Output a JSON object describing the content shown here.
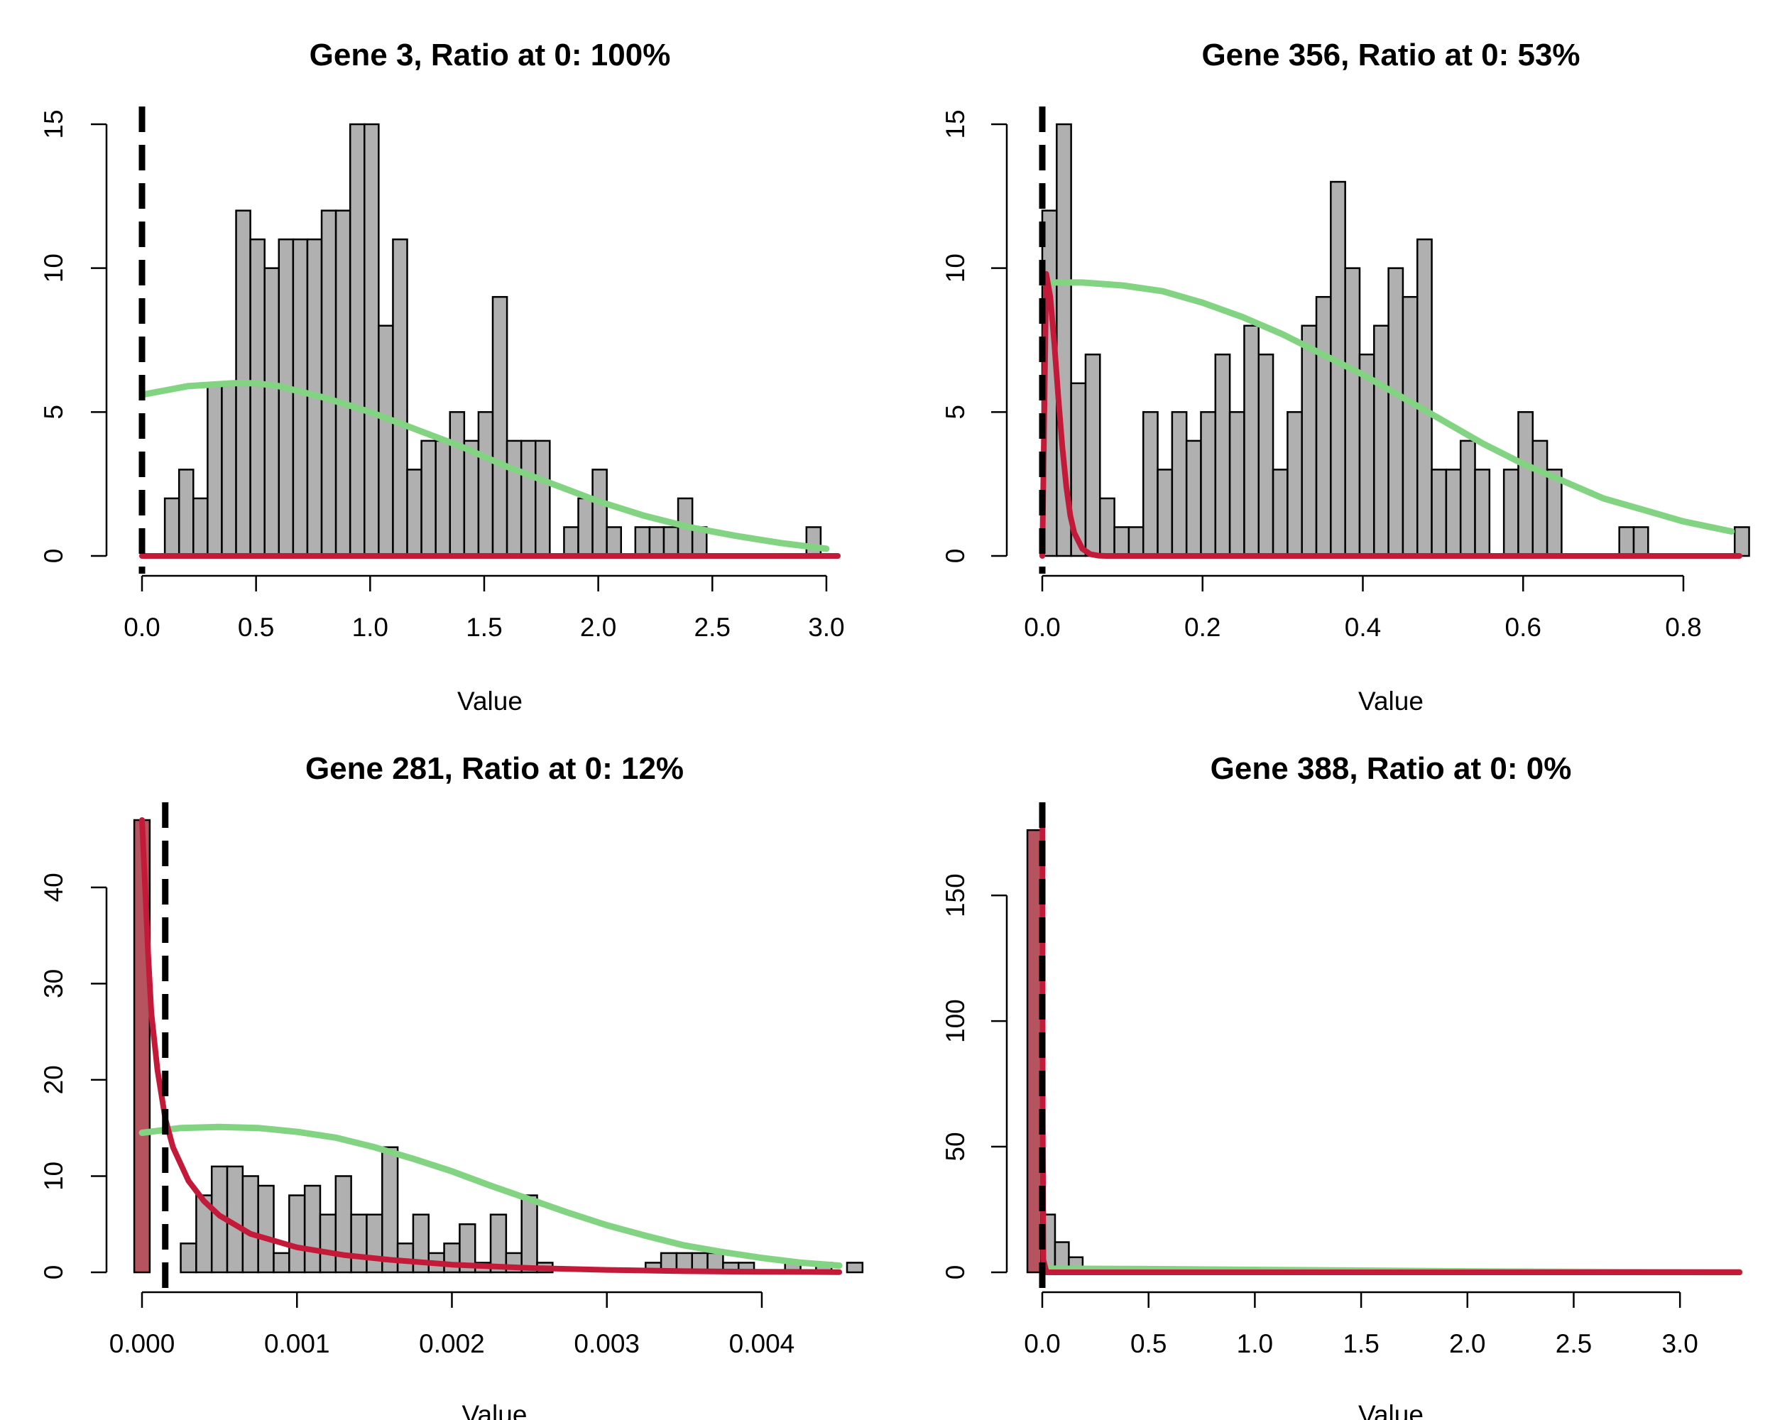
{
  "chart_data": [
    {
      "type": "bar",
      "title": "Gene 3, Ratio at 0: 100%",
      "xlabel": "Value",
      "ylabel": "",
      "xlim": [
        0,
        3.05
      ],
      "ylim": [
        0,
        15
      ],
      "xticks": [
        "0.0",
        "0.5",
        "1.0",
        "1.5",
        "2.0",
        "2.5",
        "3.0"
      ],
      "yticks": [
        "0",
        "5",
        "10",
        "15"
      ],
      "bin_start": 0.1,
      "bin_width": 0.0625,
      "counts": [
        2,
        3,
        2,
        6,
        6,
        12,
        11,
        10,
        11,
        11,
        11,
        12,
        12,
        15,
        15,
        8,
        11,
        3,
        4,
        4,
        5,
        4,
        5,
        9,
        4,
        4,
        4,
        0,
        1,
        2,
        3,
        1,
        0,
        1,
        1,
        1,
        2,
        1,
        0,
        0,
        0,
        0,
        0,
        0,
        0,
        1
      ],
      "highlight_bins": [],
      "threshold": 0.0,
      "colors": {
        "bar": "#b0b0b0",
        "highlight": "#b5545e",
        "green": "#82d482",
        "red": "#c41a3a"
      },
      "green_curve": {
        "x": [
          0,
          0.2,
          0.4,
          0.5,
          0.6,
          0.8,
          1.0,
          1.2,
          1.4,
          1.6,
          1.8,
          2.0,
          2.2,
          2.4,
          2.6,
          2.8,
          3.0
        ],
        "y": [
          5.6,
          5.9,
          6.0,
          6.0,
          5.9,
          5.5,
          5.0,
          4.4,
          3.8,
          3.1,
          2.5,
          1.9,
          1.4,
          1.0,
          0.7,
          0.45,
          0.25
        ]
      },
      "red_curve": {
        "x": [
          0,
          3.05
        ],
        "y": [
          0,
          0
        ]
      }
    },
    {
      "type": "bar",
      "title": "Gene 356, Ratio at 0: 53%",
      "xlabel": "Value",
      "ylabel": "",
      "xlim": [
        0,
        0.87
      ],
      "ylim": [
        0,
        15
      ],
      "xticks": [
        "0.0",
        "0.2",
        "0.4",
        "0.6",
        "0.8"
      ],
      "yticks": [
        "0",
        "5",
        "10",
        "15"
      ],
      "bin_start": 0,
      "bin_width": 0.018,
      "counts": [
        12,
        15,
        6,
        7,
        2,
        1,
        1,
        5,
        3,
        5,
        4,
        5,
        7,
        5,
        8,
        7,
        3,
        5,
        8,
        9,
        13,
        10,
        7,
        8,
        10,
        9,
        11,
        3,
        3,
        4,
        3,
        0,
        3,
        5,
        4,
        3,
        0,
        0,
        0,
        0,
        1,
        1,
        0,
        0,
        0,
        0,
        0,
        0,
        1
      ],
      "highlight_bins": [],
      "threshold": 0.0,
      "colors": {
        "bar": "#b0b0b0",
        "highlight": "#b5545e",
        "green": "#82d482",
        "red": "#c41a3a"
      },
      "green_curve": {
        "x": [
          0,
          0.05,
          0.1,
          0.15,
          0.2,
          0.25,
          0.3,
          0.35,
          0.4,
          0.45,
          0.5,
          0.55,
          0.6,
          0.65,
          0.7,
          0.75,
          0.8,
          0.86
        ],
        "y": [
          9.5,
          9.5,
          9.4,
          9.2,
          8.8,
          8.3,
          7.7,
          7.0,
          6.3,
          5.5,
          4.7,
          3.9,
          3.2,
          2.6,
          2.0,
          1.6,
          1.2,
          0.85
        ]
      },
      "red_curve": {
        "x": [
          0,
          0.005,
          0.01,
          0.015,
          0.02,
          0.025,
          0.03,
          0.035,
          0.04,
          0.05,
          0.06,
          0.07,
          0.08,
          0.87
        ],
        "y": [
          0,
          9.8,
          9.0,
          7.4,
          5.5,
          3.8,
          2.4,
          1.4,
          0.8,
          0.25,
          0.06,
          0.01,
          0,
          0
        ]
      }
    },
    {
      "type": "bar",
      "title": "Gene 281, Ratio at 0: 12%",
      "xlabel": "Value",
      "ylabel": "",
      "xlim": [
        0,
        0.00455
      ],
      "ylim": [
        0,
        47
      ],
      "xticks": [
        "0.000",
        "0.001",
        "0.002",
        "0.003",
        "0.004"
      ],
      "yticks": [
        "0",
        "10",
        "20",
        "30",
        "40"
      ],
      "bin_start": -5e-05,
      "bin_width": 0.0001,
      "counts": [
        47,
        0,
        0,
        3,
        8,
        11,
        11,
        10,
        9,
        2,
        8,
        9,
        6,
        10,
        6,
        6,
        13,
        3,
        6,
        2,
        3,
        5,
        1,
        6,
        2,
        8,
        1,
        0,
        0,
        0,
        0,
        0,
        0,
        1,
        2,
        2,
        2,
        2,
        1,
        1,
        0,
        0,
        1,
        0,
        1,
        0,
        1
      ],
      "highlight_bins": [
        0
      ],
      "threshold": 0.00015,
      "colors": {
        "bar": "#b0b0b0",
        "highlight": "#b5545e",
        "green": "#82d482",
        "red": "#c41a3a"
      },
      "green_curve": {
        "x": [
          0,
          0.00025,
          0.0005,
          0.00075,
          0.001,
          0.00125,
          0.0015,
          0.00175,
          0.002,
          0.00225,
          0.0025,
          0.00275,
          0.003,
          0.00325,
          0.0035,
          0.00375,
          0.004,
          0.00425,
          0.0045
        ],
        "y": [
          14.5,
          15.0,
          15.1,
          15.0,
          14.6,
          14.0,
          13.0,
          11.8,
          10.5,
          9.0,
          7.6,
          6.2,
          4.9,
          3.8,
          2.8,
          2.1,
          1.5,
          1.0,
          0.7
        ]
      },
      "red_curve": {
        "x": [
          0,
          2e-05,
          4e-05,
          6e-05,
          0.0001,
          0.00015,
          0.0002,
          0.0003,
          0.0004,
          0.0005,
          0.0007,
          0.001,
          0.0013,
          0.0016,
          0.002,
          0.0025,
          0.003,
          0.0035,
          0.004,
          0.0045
        ],
        "y": [
          47,
          40,
          33,
          27,
          21,
          16,
          13,
          9.5,
          7.4,
          5.9,
          4.0,
          2.6,
          1.8,
          1.3,
          0.8,
          0.45,
          0.25,
          0.12,
          0.05,
          0.02
        ]
      }
    },
    {
      "type": "bar",
      "title": "Gene 388, Ratio at 0: 0%",
      "xlabel": "Value",
      "ylabel": "",
      "xlim": [
        0,
        3.28
      ],
      "ylim": [
        0,
        180
      ],
      "xticks": [
        "0.0",
        "0.5",
        "1.0",
        "1.5",
        "2.0",
        "2.5",
        "3.0"
      ],
      "yticks": [
        "0",
        "50",
        "100",
        "150"
      ],
      "bin_start": -0.07,
      "bin_width": 0.065,
      "counts": [
        176,
        23,
        12,
        6
      ],
      "highlight_bins": [
        0
      ],
      "threshold": 0.0,
      "colors": {
        "bar": "#b0b0b0",
        "highlight": "#b5545e",
        "green": "#82d482",
        "red": "#c41a3a"
      },
      "green_curve": {
        "x": [
          0,
          0.5,
          1.0,
          1.5,
          2.0,
          2.5,
          3.0,
          3.28
        ],
        "y": [
          1.5,
          1.3,
          1.0,
          0.7,
          0.4,
          0.2,
          0.1,
          0.05
        ]
      },
      "red_curve": {
        "x": [
          0,
          0.001,
          0.002,
          0.005,
          0.02,
          3.28
        ],
        "y": [
          180,
          180,
          60,
          5,
          0,
          0
        ]
      }
    }
  ]
}
